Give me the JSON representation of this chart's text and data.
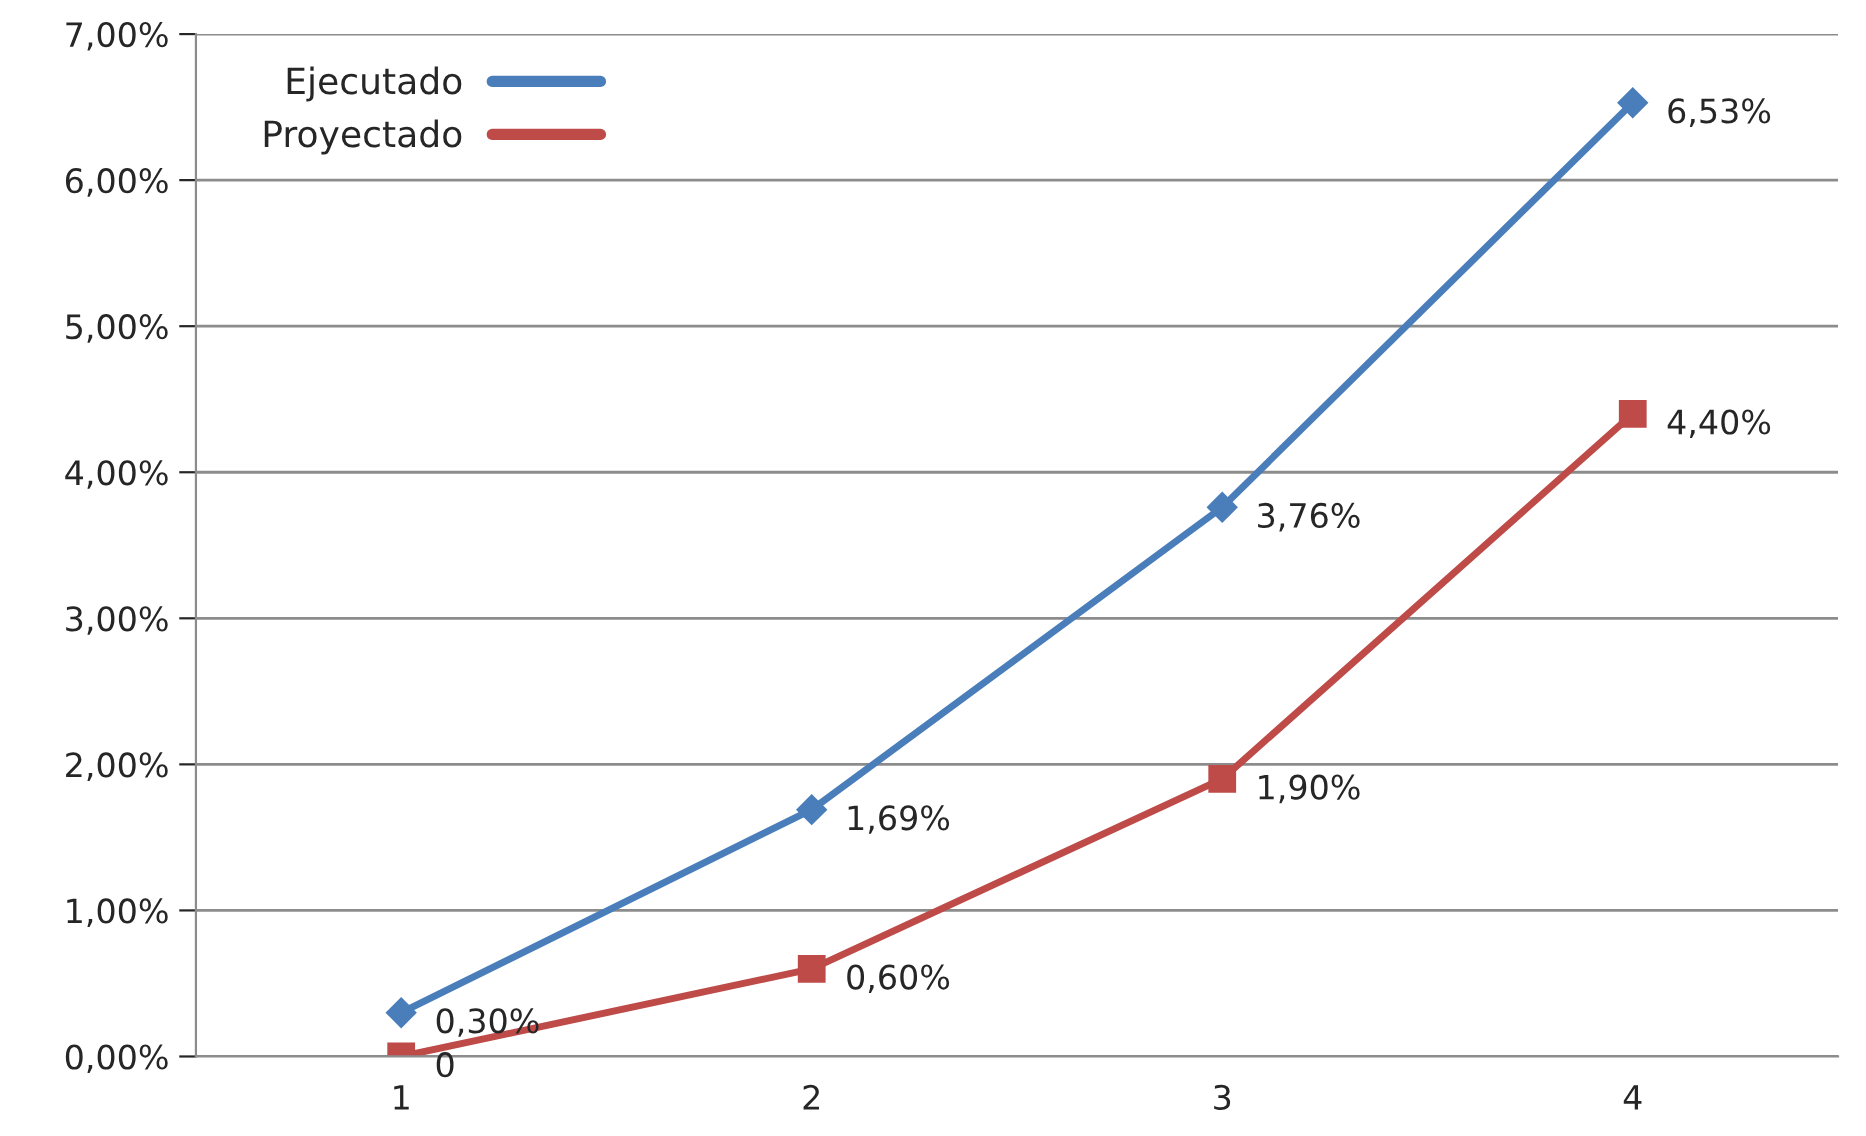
{
  "chart_data": {
    "type": "line",
    "categories": [
      "1",
      "2",
      "3",
      "4"
    ],
    "series": [
      {
        "name": "Ejecutado",
        "color": "#4a7ebb",
        "marker": "diamond",
        "values": [
          0.3,
          1.69,
          3.76,
          6.53
        ],
        "value_labels": [
          "0,30%",
          "1,69%",
          "3,76%",
          "6,53%"
        ]
      },
      {
        "name": "Proyectado",
        "color": "#be4b48",
        "marker": "square",
        "values": [
          0,
          0.6,
          1.9,
          4.4
        ],
        "value_labels": [
          "0",
          "0,60%",
          "1,90%",
          "4,40%"
        ]
      }
    ],
    "ylim": [
      0,
      7
    ],
    "yticks": [
      {
        "value": 0,
        "label": "0,00%"
      },
      {
        "value": 1,
        "label": "1,00%"
      },
      {
        "value": 2,
        "label": "2,00%"
      },
      {
        "value": 3,
        "label": "3,00%"
      },
      {
        "value": 4,
        "label": "4,00%"
      },
      {
        "value": 5,
        "label": "5,00%"
      },
      {
        "value": 6,
        "label": "6,00%"
      },
      {
        "value": 7,
        "label": "7,00%"
      }
    ],
    "grid": "y",
    "legend": "top left",
    "line_style": "solid"
  }
}
